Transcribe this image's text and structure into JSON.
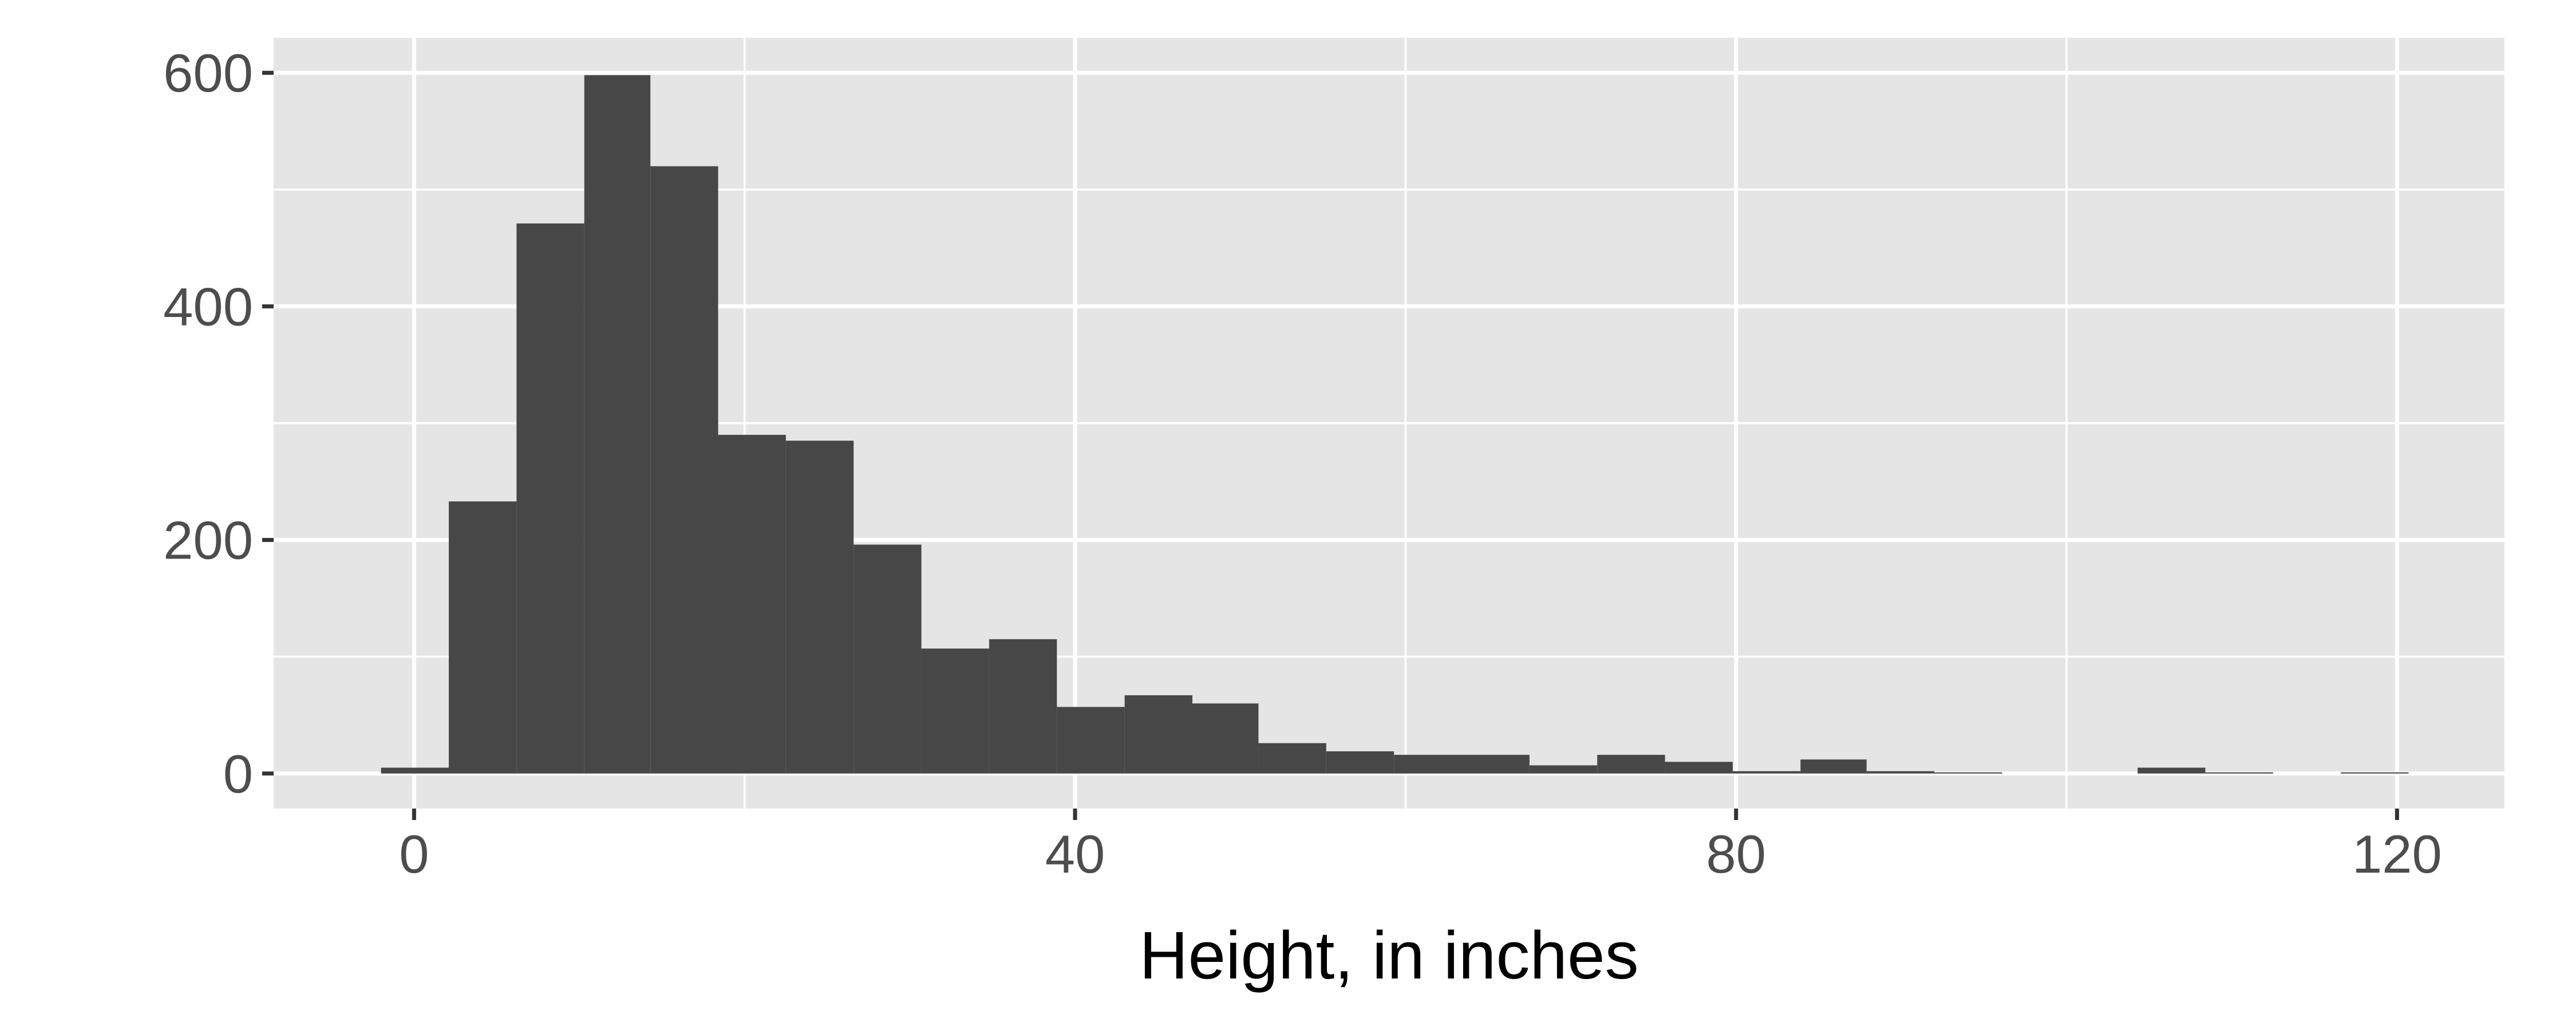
{
  "chart_data": {
    "type": "bar",
    "subtype": "histogram",
    "title": "",
    "xlabel": "Height, in inches",
    "ylabel": "",
    "xlim": [
      -8.5,
      126.5
    ],
    "ylim": [
      -30,
      630
    ],
    "x_ticks": [
      0,
      40,
      80,
      120
    ],
    "x_tick_labels": [
      "0",
      "40",
      "80",
      "120"
    ],
    "y_ticks": [
      0,
      200,
      400,
      600
    ],
    "y_tick_labels": [
      "0",
      "200",
      "400",
      "600"
    ],
    "grid": true,
    "legend": "none",
    "bin_width": 4.09,
    "bins": [
      {
        "x0": -2.0,
        "x1": 2.1,
        "count": 5
      },
      {
        "x0": 2.1,
        "x1": 6.2,
        "count": 233
      },
      {
        "x0": 6.2,
        "x1": 10.3,
        "count": 471
      },
      {
        "x0": 10.3,
        "x1": 14.3,
        "count": 598
      },
      {
        "x0": 14.3,
        "x1": 18.4,
        "count": 520
      },
      {
        "x0": 18.4,
        "x1": 22.5,
        "count": 290
      },
      {
        "x0": 22.5,
        "x1": 26.6,
        "count": 285
      },
      {
        "x0": 26.6,
        "x1": 30.7,
        "count": 196
      },
      {
        "x0": 30.7,
        "x1": 34.8,
        "count": 107
      },
      {
        "x0": 34.8,
        "x1": 38.9,
        "count": 115
      },
      {
        "x0": 38.9,
        "x1": 43.0,
        "count": 57
      },
      {
        "x0": 43.0,
        "x1": 47.1,
        "count": 67
      },
      {
        "x0": 47.1,
        "x1": 51.1,
        "count": 60
      },
      {
        "x0": 51.1,
        "x1": 55.2,
        "count": 26
      },
      {
        "x0": 55.2,
        "x1": 59.3,
        "count": 19
      },
      {
        "x0": 59.3,
        "x1": 63.4,
        "count": 16
      },
      {
        "x0": 63.4,
        "x1": 67.5,
        "count": 16
      },
      {
        "x0": 67.5,
        "x1": 71.6,
        "count": 7
      },
      {
        "x0": 71.6,
        "x1": 75.7,
        "count": 16
      },
      {
        "x0": 75.7,
        "x1": 79.8,
        "count": 10
      },
      {
        "x0": 79.8,
        "x1": 83.9,
        "count": 2
      },
      {
        "x0": 83.9,
        "x1": 87.9,
        "count": 12
      },
      {
        "x0": 87.9,
        "x1": 92.0,
        "count": 2
      },
      {
        "x0": 92.0,
        "x1": 96.1,
        "count": 1
      },
      {
        "x0": 104.3,
        "x1": 108.4,
        "count": 5
      },
      {
        "x0": 108.4,
        "x1": 112.5,
        "count": 1
      },
      {
        "x0": 116.6,
        "x1": 120.7,
        "count": 1
      }
    ],
    "colors": {
      "panel_background": "#e5e5e5",
      "grid": "#ffffff",
      "bar_fill": "#474747",
      "tick_label": "#4d4d4d",
      "tick_mark": "#333333"
    }
  }
}
